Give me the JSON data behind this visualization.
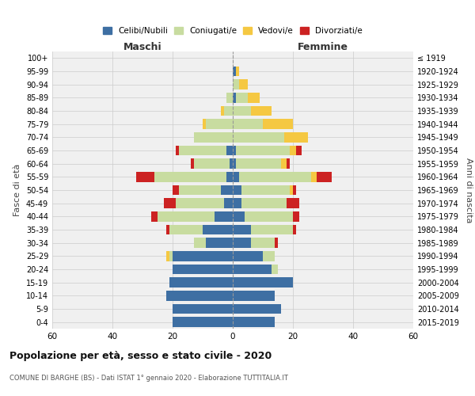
{
  "age_groups": [
    "0-4",
    "5-9",
    "10-14",
    "15-19",
    "20-24",
    "25-29",
    "30-34",
    "35-39",
    "40-44",
    "45-49",
    "50-54",
    "55-59",
    "60-64",
    "65-69",
    "70-74",
    "75-79",
    "80-84",
    "85-89",
    "90-94",
    "95-99",
    "100+"
  ],
  "birth_years": [
    "2015-2019",
    "2010-2014",
    "2005-2009",
    "2000-2004",
    "1995-1999",
    "1990-1994",
    "1985-1989",
    "1980-1984",
    "1975-1979",
    "1970-1974",
    "1965-1969",
    "1960-1964",
    "1955-1959",
    "1950-1954",
    "1945-1949",
    "1940-1944",
    "1935-1939",
    "1930-1934",
    "1925-1929",
    "1920-1924",
    "≤ 1919"
  ],
  "males": {
    "celibi": [
      20,
      20,
      22,
      21,
      20,
      20,
      9,
      10,
      6,
      3,
      4,
      2,
      1,
      2,
      0,
      0,
      0,
      0,
      0,
      0,
      0
    ],
    "coniugati": [
      0,
      0,
      0,
      0,
      0,
      1,
      4,
      11,
      19,
      16,
      14,
      24,
      12,
      16,
      13,
      9,
      3,
      2,
      0,
      0,
      0
    ],
    "vedovi": [
      0,
      0,
      0,
      0,
      0,
      1,
      0,
      0,
      0,
      0,
      0,
      0,
      0,
      0,
      0,
      1,
      1,
      0,
      0,
      0,
      0
    ],
    "divorziati": [
      0,
      0,
      0,
      0,
      0,
      0,
      0,
      1,
      2,
      4,
      2,
      6,
      1,
      1,
      0,
      0,
      0,
      0,
      0,
      0,
      0
    ]
  },
  "females": {
    "nubili": [
      14,
      16,
      14,
      20,
      13,
      10,
      6,
      6,
      4,
      3,
      3,
      2,
      1,
      1,
      0,
      0,
      0,
      1,
      0,
      1,
      0
    ],
    "coniugate": [
      0,
      0,
      0,
      0,
      2,
      4,
      8,
      14,
      16,
      15,
      16,
      24,
      15,
      18,
      17,
      10,
      6,
      4,
      2,
      0,
      0
    ],
    "vedove": [
      0,
      0,
      0,
      0,
      0,
      0,
      0,
      0,
      0,
      0,
      1,
      2,
      2,
      2,
      8,
      10,
      7,
      4,
      3,
      1,
      0
    ],
    "divorziate": [
      0,
      0,
      0,
      0,
      0,
      0,
      1,
      1,
      2,
      4,
      1,
      5,
      1,
      2,
      0,
      0,
      0,
      0,
      0,
      0,
      0
    ]
  },
  "colors": {
    "celibi": "#3e6fa3",
    "coniugati": "#c8dca0",
    "vedovi": "#f5c842",
    "divorziati": "#cc2222"
  },
  "title": "Popolazione per età, sesso e stato civile - 2020",
  "subtitle": "COMUNE DI BARGHE (BS) - Dati ISTAT 1° gennaio 2020 - Elaborazione TUTTITALIA.IT",
  "xlabel_left": "Maschi",
  "xlabel_right": "Femmine",
  "ylabel_left": "Fasce di età",
  "ylabel_right": "Anni di nascita",
  "xlim": 60,
  "legend_labels": [
    "Celibi/Nubili",
    "Coniugati/e",
    "Vedovi/e",
    "Divorziati/e"
  ],
  "bg_color": "#f0f0f0",
  "grid_color": "#cccccc"
}
